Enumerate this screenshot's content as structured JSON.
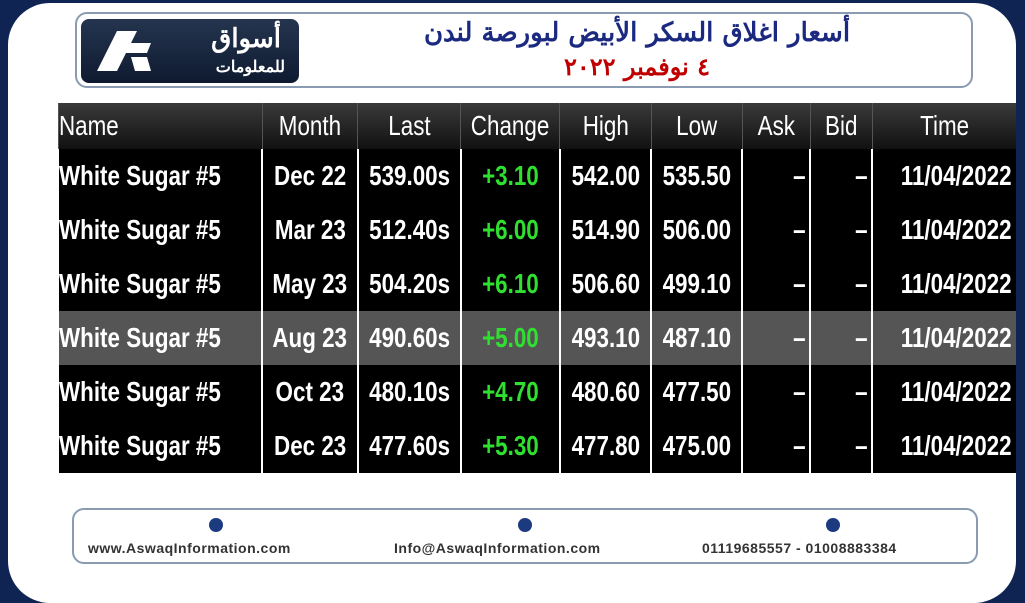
{
  "logo": {
    "name": "أسواق",
    "subtitle": "للمعلومات"
  },
  "header": {
    "title": "أسعار اغلاق السكر الأبيض لبورصة لندن",
    "date": "٤ نوفمبر ٢٠٢٢"
  },
  "table": {
    "columns": [
      "Name",
      "Month",
      "Last",
      "Change",
      "High",
      "Low",
      "Ask",
      "Bid",
      "Time"
    ],
    "rows": [
      [
        "White Sugar #5",
        "Dec 22",
        "539.00s",
        "+3.10",
        "542.00",
        "535.50",
        "–",
        "–",
        "11/04/2022"
      ],
      [
        "White Sugar #5",
        "Mar 23",
        "512.40s",
        "+6.00",
        "514.90",
        "506.00",
        "–",
        "–",
        "11/04/2022"
      ],
      [
        "White Sugar #5",
        "May 23",
        "504.20s",
        "+6.10",
        "506.60",
        "499.10",
        "–",
        "–",
        "11/04/2022"
      ],
      [
        "White Sugar #5",
        "Aug 23",
        "490.60s",
        "+5.00",
        "493.10",
        "487.10",
        "–",
        "–",
        "11/04/2022"
      ],
      [
        "White Sugar #5",
        "Oct 23",
        "480.10s",
        "+4.70",
        "480.60",
        "477.50",
        "–",
        "–",
        "11/04/2022"
      ],
      [
        "White Sugar #5",
        "Dec 23",
        "477.60s",
        "+5.30",
        "477.80",
        "475.00",
        "–",
        "–",
        "11/04/2022"
      ]
    ]
  },
  "footer": {
    "website": "www.AswaqInformation.com",
    "email": "Info@AswaqInformation.com",
    "phones": "01119685557 - 01008883384"
  }
}
